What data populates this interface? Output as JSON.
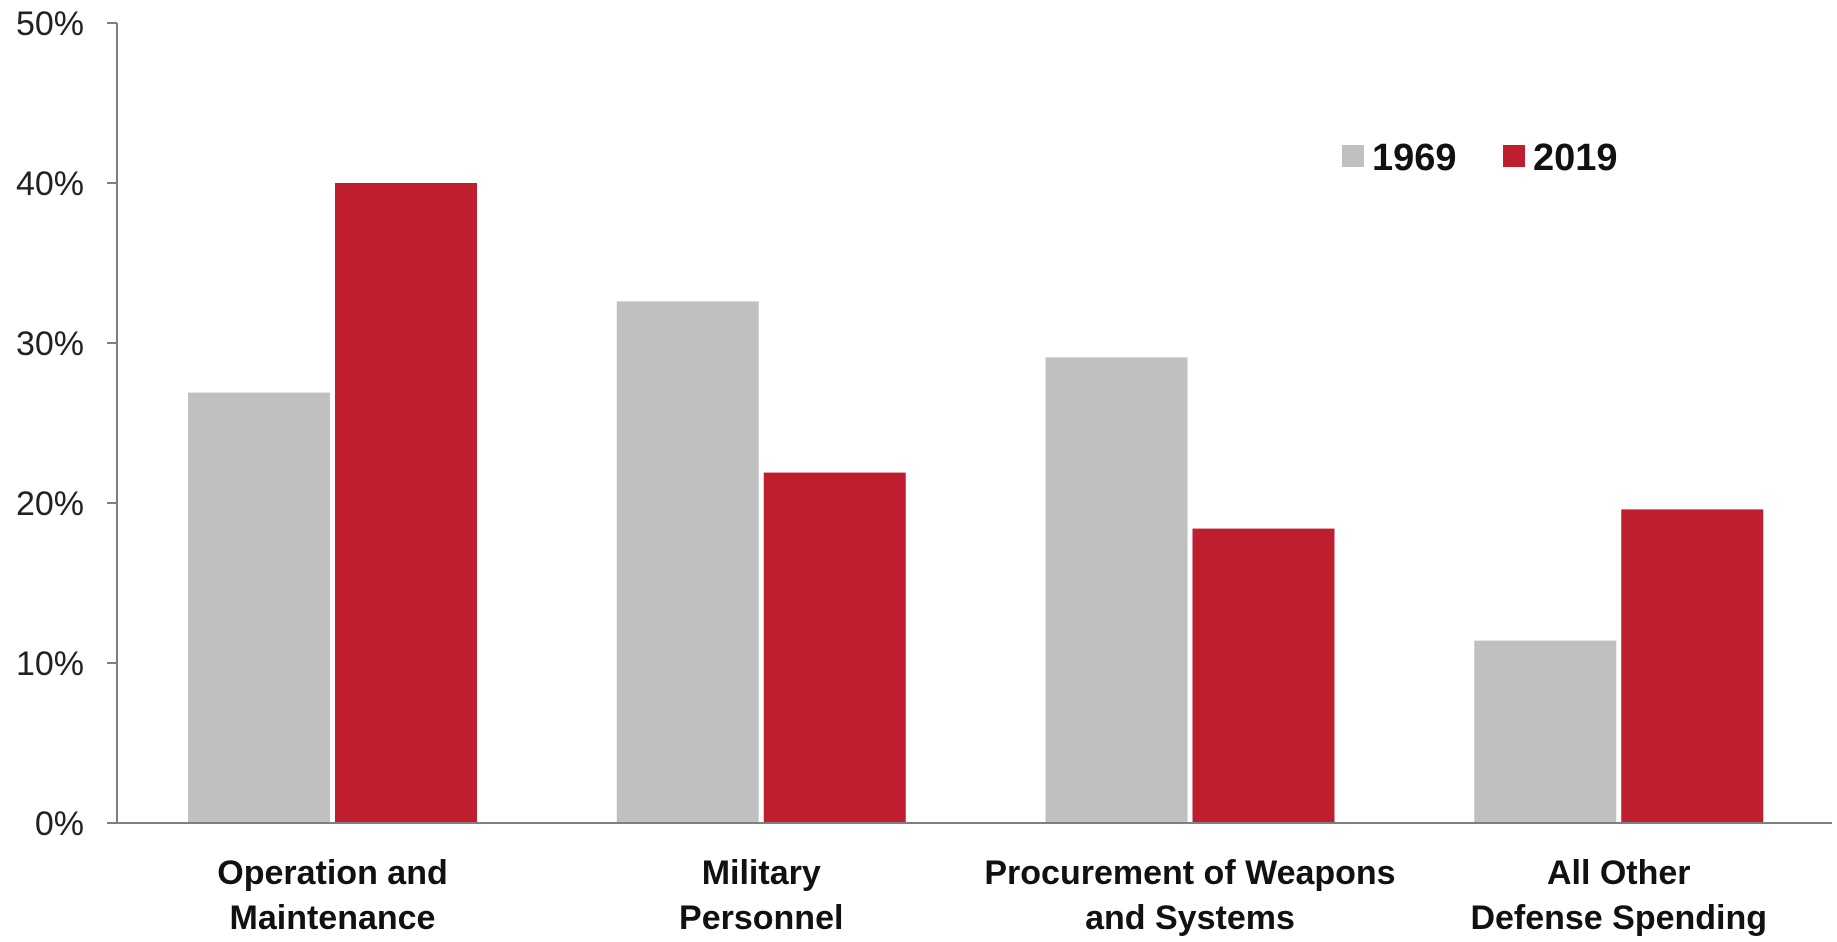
{
  "chart_data": {
    "type": "bar",
    "categories": [
      [
        "Operation and",
        "Maintenance"
      ],
      [
        "Military",
        "Personnel"
      ],
      [
        "Procurement of Weapons",
        "and Systems"
      ],
      [
        "All Other",
        "Defense Spending"
      ]
    ],
    "series": [
      {
        "name": "1969",
        "color": "#c0c0c0",
        "values": [
          26.9,
          32.6,
          29.1,
          11.4
        ]
      },
      {
        "name": "2019",
        "color": "#be1e2d",
        "values": [
          40.0,
          21.9,
          18.4,
          19.6
        ]
      }
    ],
    "ylim": [
      0,
      50
    ],
    "yticks": [
      0,
      10,
      20,
      30,
      40,
      50
    ],
    "ytick_labels": [
      "0%",
      "10%",
      "20%",
      "30%",
      "40%",
      "50%"
    ],
    "legend": {
      "position": "top-right"
    },
    "axis_color": "#7f7f7f",
    "grid": false
  }
}
